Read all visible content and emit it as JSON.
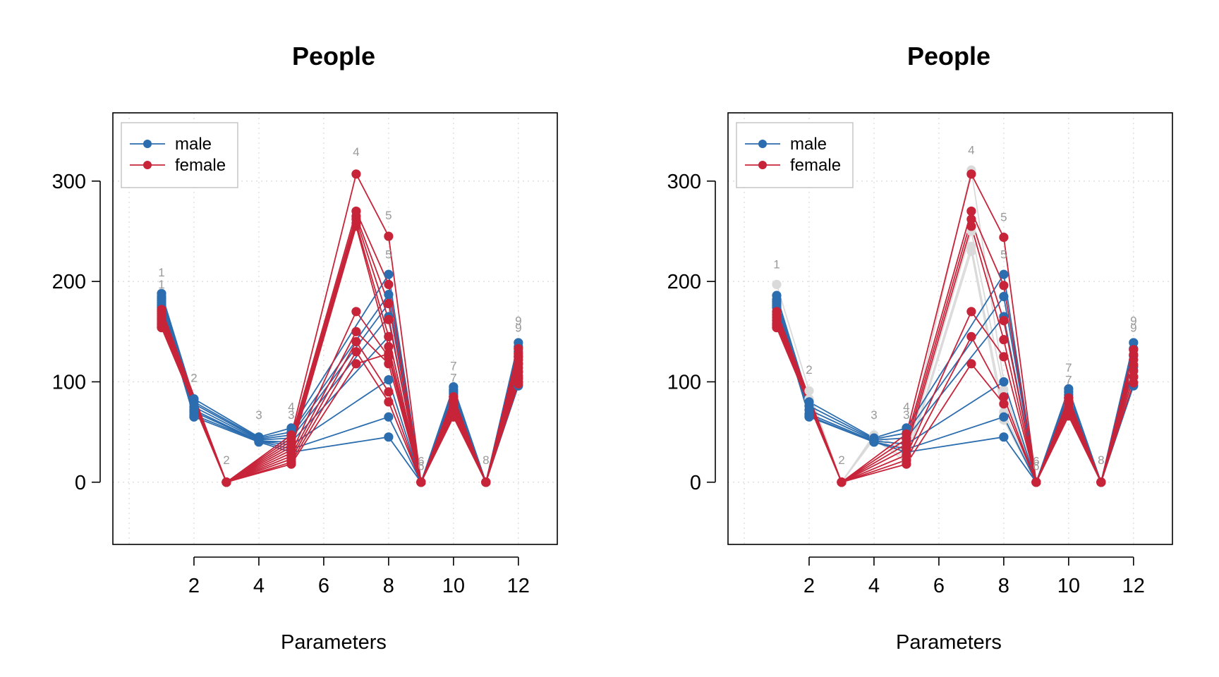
{
  "chart_data": [
    {
      "type": "line",
      "panel": "left",
      "title": "People",
      "xlabel": "Parameters",
      "ylabel": "",
      "xlim": [
        -0.5,
        13.2
      ],
      "ylim": [
        -62,
        368
      ],
      "xticks": [
        2,
        4,
        6,
        8,
        10,
        12
      ],
      "yticks": [
        0,
        100,
        200,
        300
      ],
      "grid": true,
      "legend": {
        "position": "top-left",
        "entries": [
          {
            "name": "male",
            "color": "#2B6DAE"
          },
          {
            "name": "female",
            "color": "#C7243A"
          }
        ]
      },
      "x": [
        1,
        2,
        3,
        4,
        5,
        7,
        8,
        9,
        10,
        11,
        12
      ],
      "series": [
        {
          "group": "male",
          "color": "#2B6DAE",
          "values": [
            188,
            83,
            null,
            45,
            54,
            null,
            207,
            0,
            95,
            0,
            139
          ]
        },
        {
          "group": "male",
          "color": "#2B6DAE",
          "values": [
            185,
            80,
            null,
            44,
            50,
            null,
            187,
            0,
            92,
            0,
            135
          ]
        },
        {
          "group": "male",
          "color": "#2B6DAE",
          "values": [
            183,
            78,
            null,
            43,
            47,
            null,
            178,
            0,
            90,
            0,
            130
          ]
        },
        {
          "group": "male",
          "color": "#2B6DAE",
          "values": [
            181,
            75,
            null,
            42,
            44,
            null,
            165,
            0,
            88,
            0,
            125
          ]
        },
        {
          "group": "male",
          "color": "#2B6DAE",
          "values": [
            179,
            72,
            null,
            41,
            40,
            null,
            145,
            0,
            85,
            0,
            118
          ]
        },
        {
          "group": "male",
          "color": "#2B6DAE",
          "values": [
            177,
            70,
            null,
            41,
            37,
            null,
            102,
            0,
            82,
            0,
            110
          ]
        },
        {
          "group": "male",
          "color": "#2B6DAE",
          "values": [
            176,
            67,
            null,
            41,
            33,
            null,
            65,
            0,
            80,
            0,
            104
          ]
        },
        {
          "group": "male",
          "color": "#2B6DAE",
          "values": [
            174,
            65,
            null,
            40,
            30,
            null,
            45,
            0,
            78,
            0,
            96
          ]
        },
        {
          "group": "female",
          "color": "#C7243A",
          "values": [
            172,
            null,
            0,
            null,
            47,
            307,
            245,
            0,
            85,
            0,
            133
          ]
        },
        {
          "group": "female",
          "color": "#C7243A",
          "values": [
            170,
            null,
            0,
            null,
            44,
            270,
            197,
            0,
            82,
            0,
            128
          ]
        },
        {
          "group": "female",
          "color": "#C7243A",
          "values": [
            168,
            null,
            0,
            null,
            41,
            265,
            178,
            0,
            80,
            0,
            125
          ]
        },
        {
          "group": "female",
          "color": "#C7243A",
          "values": [
            166,
            null,
            0,
            null,
            38,
            262,
            162,
            0,
            79,
            0,
            122
          ]
        },
        {
          "group": "female",
          "color": "#C7243A",
          "values": [
            164,
            null,
            0,
            null,
            35,
            258,
            145,
            0,
            77,
            0,
            118
          ]
        },
        {
          "group": "female",
          "color": "#C7243A",
          "values": [
            162,
            null,
            0,
            null,
            32,
            255,
            135,
            0,
            75,
            0,
            114
          ]
        },
        {
          "group": "female",
          "color": "#C7243A",
          "values": [
            160,
            null,
            0,
            null,
            29,
            170,
            125,
            0,
            73,
            0,
            110
          ]
        },
        {
          "group": "female",
          "color": "#C7243A",
          "values": [
            158,
            null,
            0,
            null,
            26,
            150,
            118,
            0,
            71,
            0,
            106
          ]
        },
        {
          "group": "female",
          "color": "#C7243A",
          "values": [
            157,
            null,
            0,
            null,
            23,
            140,
            90,
            0,
            68,
            0,
            103
          ]
        },
        {
          "group": "female",
          "color": "#C7243A",
          "values": [
            155,
            null,
            0,
            null,
            20,
            130,
            80,
            0,
            66,
            0,
            100
          ]
        },
        {
          "group": "female",
          "color": "#C7243A",
          "values": [
            154,
            null,
            0,
            null,
            18,
            118,
            128,
            0,
            65,
            0,
            98
          ]
        }
      ],
      "point_labels": [
        {
          "text": "1",
          "x": 1,
          "y": 205
        },
        {
          "text": "1",
          "x": 1,
          "y": 193
        },
        {
          "text": "2",
          "x": 2,
          "y": 100
        },
        {
          "text": "2",
          "x": 3,
          "y": 18
        },
        {
          "text": "3",
          "x": 4,
          "y": 63
        },
        {
          "text": "4",
          "x": 5,
          "y": 71
        },
        {
          "text": "3",
          "x": 5,
          "y": 63
        },
        {
          "text": "4",
          "x": 7,
          "y": 325
        },
        {
          "text": "5",
          "x": 8,
          "y": 262
        },
        {
          "text": "5",
          "x": 8,
          "y": 223
        },
        {
          "text": "6",
          "x": 9,
          "y": 17
        },
        {
          "text": "6",
          "x": 9,
          "y": 12
        },
        {
          "text": "7",
          "x": 10,
          "y": 112
        },
        {
          "text": "7",
          "x": 10,
          "y": 100
        },
        {
          "text": "8",
          "x": 11,
          "y": 18
        },
        {
          "text": "9",
          "x": 12,
          "y": 157
        },
        {
          "text": "9",
          "x": 12,
          "y": 150
        }
      ]
    },
    {
      "type": "line",
      "panel": "right",
      "title": "People",
      "xlabel": "Parameters",
      "ylabel": "",
      "xlim": [
        -0.5,
        13.2
      ],
      "ylim": [
        -62,
        368
      ],
      "xticks": [
        2,
        4,
        6,
        8,
        10,
        12
      ],
      "yticks": [
        0,
        100,
        200,
        300
      ],
      "grid": true,
      "legend": {
        "position": "top-left",
        "entries": [
          {
            "name": "male",
            "color": "#2B6DAE"
          },
          {
            "name": "female",
            "color": "#C7243A"
          }
        ]
      },
      "x": [
        1,
        2,
        3,
        4,
        5,
        7,
        8,
        9,
        10,
        11,
        12
      ],
      "series": [
        {
          "group": "male",
          "color": "#2B6DAE",
          "values": [
            186,
            80,
            null,
            44,
            54,
            null,
            207,
            0,
            93,
            0,
            139
          ]
        },
        {
          "group": "male",
          "color": "#2B6DAE",
          "values": [
            182,
            76,
            null,
            43,
            49,
            null,
            185,
            0,
            90,
            0,
            133
          ]
        },
        {
          "group": "male",
          "color": "#2B6DAE",
          "values": [
            180,
            72,
            null,
            42,
            44,
            null,
            165,
            0,
            87,
            0,
            126
          ]
        },
        {
          "group": "male",
          "color": "#2B6DAE",
          "values": [
            178,
            68,
            null,
            41,
            38,
            null,
            100,
            0,
            84,
            0,
            115
          ]
        },
        {
          "group": "male",
          "color": "#2B6DAE",
          "values": [
            176,
            66,
            null,
            40,
            33,
            null,
            65,
            0,
            81,
            0,
            105
          ]
        },
        {
          "group": "male",
          "color": "#2B6DAE",
          "values": [
            174,
            65,
            null,
            40,
            30,
            null,
            45,
            0,
            78,
            0,
            96
          ]
        },
        {
          "group": "female",
          "color": "#C7243A",
          "values": [
            170,
            null,
            0,
            null,
            48,
            307,
            244,
            0,
            84,
            0,
            132
          ]
        },
        {
          "group": "female",
          "color": "#C7243A",
          "values": [
            167,
            null,
            0,
            null,
            43,
            270,
            196,
            0,
            81,
            0,
            127
          ]
        },
        {
          "group": "female",
          "color": "#C7243A",
          "values": [
            164,
            null,
            0,
            null,
            38,
            262,
            161,
            0,
            78,
            0,
            122
          ]
        },
        {
          "group": "female",
          "color": "#C7243A",
          "values": [
            161,
            null,
            0,
            null,
            33,
            255,
            142,
            0,
            75,
            0,
            117
          ]
        },
        {
          "group": "female",
          "color": "#C7243A",
          "values": [
            158,
            null,
            0,
            null,
            27,
            170,
            125,
            0,
            72,
            0,
            111
          ]
        },
        {
          "group": "female",
          "color": "#C7243A",
          "values": [
            156,
            null,
            0,
            null,
            22,
            145,
            85,
            0,
            69,
            0,
            105
          ]
        },
        {
          "group": "female",
          "color": "#C7243A",
          "values": [
            154,
            null,
            0,
            null,
            18,
            118,
            78,
            0,
            66,
            0,
            99
          ]
        },
        {
          "group": "reference",
          "color": "#DADADA",
          "values": [
            197,
            91,
            0,
            47,
            33,
            311,
            100,
            0,
            90,
            0,
            126
          ]
        },
        {
          "group": "reference",
          "color": "#DADADA",
          "values": [
            180,
            83,
            0,
            45,
            28,
            250,
            92,
            0,
            80,
            0,
            110
          ]
        },
        {
          "group": "reference",
          "color": "#DADADA",
          "values": [
            168,
            78,
            0,
            44,
            23,
            235,
            70,
            0,
            77,
            0,
            103
          ]
        },
        {
          "group": "reference",
          "color": "#DADADA",
          "values": [
            157,
            76,
            0,
            43,
            20,
            230,
            62,
            0,
            75,
            0,
            100
          ]
        }
      ],
      "point_labels": [
        {
          "text": "1",
          "x": 1,
          "y": 213
        },
        {
          "text": "2",
          "x": 2,
          "y": 108
        },
        {
          "text": "2",
          "x": 3,
          "y": 18
        },
        {
          "text": "3",
          "x": 4,
          "y": 63
        },
        {
          "text": "4",
          "x": 5,
          "y": 71
        },
        {
          "text": "3",
          "x": 5,
          "y": 63
        },
        {
          "text": "4",
          "x": 7,
          "y": 327
        },
        {
          "text": "5",
          "x": 8,
          "y": 260
        },
        {
          "text": "5",
          "x": 8,
          "y": 223
        },
        {
          "text": "6",
          "x": 9,
          "y": 17
        },
        {
          "text": "6",
          "x": 9,
          "y": 12
        },
        {
          "text": "7",
          "x": 10,
          "y": 110
        },
        {
          "text": "7",
          "x": 10,
          "y": 98
        },
        {
          "text": "8",
          "x": 11,
          "y": 18
        },
        {
          "text": "9",
          "x": 12,
          "y": 157
        },
        {
          "text": "9",
          "x": 12,
          "y": 150
        }
      ]
    }
  ]
}
